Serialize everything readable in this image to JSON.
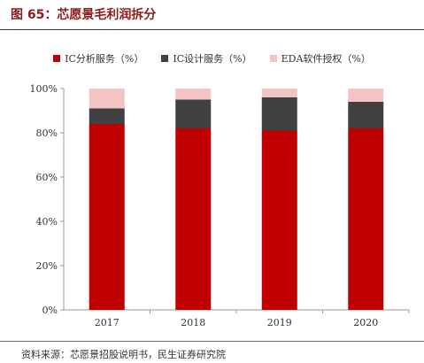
{
  "figure": {
    "title": "图 65：芯愿景毛利润拆分",
    "source": "资料来源：芯愿景招股说明书，民生证券研究院"
  },
  "chart_data": {
    "type": "bar",
    "stacked": true,
    "categories": [
      "2017",
      "2018",
      "2019",
      "2020"
    ],
    "series": [
      {
        "name": "IC分析服务（%）",
        "color": "#c00000",
        "values": [
          84,
          82,
          81,
          82
        ]
      },
      {
        "name": "IC设计服务（%）",
        "color": "#404040",
        "values": [
          7,
          13,
          15,
          12
        ]
      },
      {
        "name": "EDA软件授权（%）",
        "color": "#f2c4c4",
        "values": [
          9,
          5,
          4,
          6
        ]
      }
    ],
    "ylim": [
      0,
      100
    ],
    "yticks": [
      "0%",
      "20%",
      "40%",
      "60%",
      "80%",
      "100%"
    ],
    "legend_position": "top",
    "grid": false
  }
}
